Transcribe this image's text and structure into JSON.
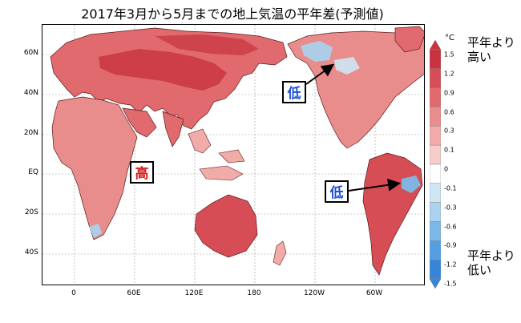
{
  "title": "2017年3月から5月までの地上気温の平年差(予測値)",
  "lat_labels": [
    "60N",
    "40N",
    "20N",
    "EQ",
    "20S",
    "40S"
  ],
  "lon_labels": [
    "0",
    "60E",
    "120E",
    "180",
    "120W",
    "60W"
  ],
  "colorbar": {
    "unit": "°C",
    "ticks": [
      "1.5",
      "1.2",
      "0.9",
      "0.6",
      "0.3",
      "0.1",
      "0",
      "-0.1",
      "-0.3",
      "-0.6",
      "-0.9",
      "-1.2",
      "-1.5"
    ],
    "colors": [
      "#c8333f",
      "#d64d55",
      "#e06a6e",
      "#e98c8c",
      "#f1acaa",
      "#f7cdca",
      "#ffffff",
      "#cfe6f5",
      "#a9d3ef",
      "#7cb9e8",
      "#559fe0",
      "#3585d8"
    ]
  },
  "legend_high": "平年より高い",
  "legend_low": "平年より低い",
  "annotations": {
    "low_north_america": "低",
    "low_south_america": "低",
    "high_africa": "高"
  }
}
